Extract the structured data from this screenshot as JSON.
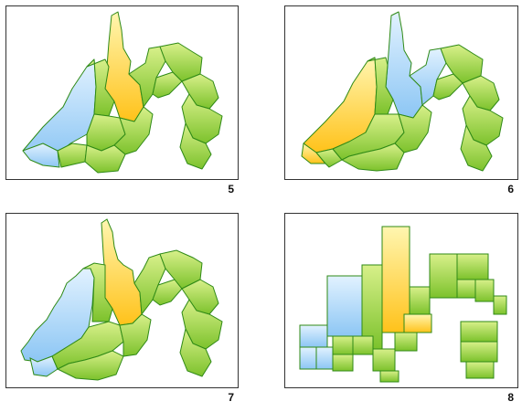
{
  "panels": [
    {
      "id": "map-5",
      "number": "5"
    },
    {
      "id": "map-6",
      "number": "6"
    },
    {
      "id": "map-7",
      "number": "7"
    },
    {
      "id": "map-8",
      "number": "8"
    }
  ],
  "colors": {
    "green_top": "#d8f08a",
    "green_bottom": "#7cc22c",
    "yellow_top": "#fff6b0",
    "yellow_bottom": "#ffc21a",
    "blue_top": "#e2f2ff",
    "blue_bottom": "#8cc6f4",
    "border": "#2f8a16",
    "frame": "#333333"
  }
}
